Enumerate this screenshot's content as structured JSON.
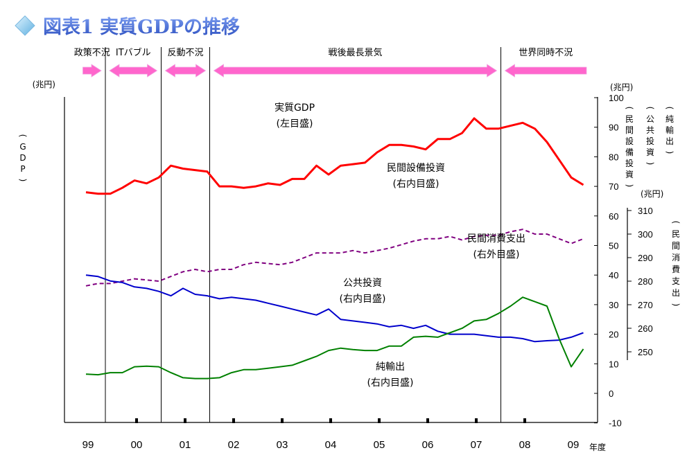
{
  "title": "図表1 実質GDPの推移",
  "colors": {
    "gdp": "#000000",
    "equipment": "#ff0000",
    "consumption": "#800080",
    "public": "#0000cc",
    "netexport": "#008000",
    "title": "#3a5fcd",
    "arrow": "#ff66cc"
  },
  "periods": [
    {
      "label": "政策不況",
      "x_from": 1998.85,
      "x_to": 1999.4
    },
    {
      "label": "ITバブル",
      "x_from": 1999.4,
      "x_to": 2000.55
    },
    {
      "label": "反動不況",
      "x_from": 2000.55,
      "x_to": 2001.55
    },
    {
      "label": "戦後最長景気",
      "x_from": 2001.55,
      "x_to": 2007.55
    },
    {
      "label": "世界同時不況",
      "x_from": 2007.55,
      "x_to": 2009.4
    }
  ],
  "chart_data": {
    "type": "line",
    "xlabel": "年度",
    "x_ticks": [
      "99",
      "00",
      "01",
      "02",
      "03",
      "04",
      "05",
      "06",
      "07",
      "08",
      "09"
    ],
    "vlines_x": [
      1999.4,
      2000.55,
      2001.55,
      2007.55
    ],
    "x": [
      1999.0,
      1999.25,
      1999.5,
      1999.75,
      2000.0,
      2000.25,
      2000.5,
      2000.75,
      2001.0,
      2001.25,
      2001.5,
      2001.75,
      2002.0,
      2002.25,
      2002.5,
      2002.75,
      2003.0,
      2003.25,
      2003.5,
      2003.75,
      2004.0,
      2004.25,
      2004.5,
      2004.75,
      2005.0,
      2005.25,
      2005.5,
      2005.75,
      2006.0,
      2006.25,
      2006.5,
      2006.75,
      2007.0,
      2007.25,
      2007.5,
      2007.75,
      2008.0,
      2008.25,
      2008.5,
      2008.75,
      2009.0,
      2009.25
    ],
    "axes": {
      "left": {
        "label": "(GDP)",
        "unit": "(兆円)",
        "min": 460,
        "max": 560,
        "ticks": [
          460,
          480,
          500,
          520,
          540,
          560
        ]
      },
      "right_inner": {
        "label": "(民間設備投資)(公共投資)(純輸出)",
        "unit": "(兆円)",
        "min": -10,
        "max": 100,
        "ticks": [
          -10,
          0,
          10,
          20,
          30,
          40,
          50,
          60,
          70,
          80,
          90,
          100
        ]
      },
      "right_outer": {
        "label": "(民間消費支出)",
        "unit": "(兆円)",
        "min": 250,
        "max": 310,
        "ticks": [
          250,
          260,
          270,
          280,
          290,
          300,
          310
        ]
      }
    },
    "series": [
      {
        "name": "実質GDP",
        "sub": "(左目盛)",
        "axis": "left",
        "color_key": "gdp",
        "values": [
          487,
          490,
          489,
          492,
          502,
          503,
          503,
          508,
          511,
          508,
          502,
          499,
          500,
          504,
          508,
          509,
          507,
          510,
          514,
          520,
          528,
          527,
          529,
          528,
          533,
          538,
          541,
          543,
          544,
          548,
          549,
          553,
          561,
          560,
          559,
          564,
          570,
          564,
          559,
          540,
          523,
          528
        ]
      },
      {
        "name": "民間設備投資",
        "sub": "(右内目盛)",
        "axis": "right_inner",
        "color_key": "equipment",
        "values": [
          68,
          67.5,
          67.5,
          69.5,
          72,
          71,
          73,
          77,
          76,
          75.5,
          75,
          70,
          70,
          69.5,
          70,
          71,
          70.5,
          72.5,
          72.5,
          77,
          74,
          77,
          77.5,
          78,
          81.5,
          84,
          84,
          83.5,
          82.5,
          86,
          86,
          88,
          93,
          89.5,
          89.5,
          90.5,
          91.5,
          89.5,
          85,
          79,
          73,
          70.5
        ]
      },
      {
        "name": "民間消費支出",
        "sub": "(右外目盛)",
        "axis": "right_outer",
        "color_key": "consumption",
        "values": [
          278,
          279,
          279,
          280,
          281,
          280.5,
          280,
          282,
          284,
          285,
          284,
          285,
          285,
          287,
          288,
          287.5,
          287,
          288,
          290,
          292,
          292,
          292,
          293,
          292,
          293,
          294,
          295.5,
          297,
          298,
          298,
          299,
          297.5,
          299,
          299.5,
          299.5,
          301,
          302,
          300,
          300,
          298,
          296,
          298
        ]
      },
      {
        "name": "公共投資",
        "sub": "(右内目盛)",
        "axis": "right_inner",
        "color_key": "public",
        "values": [
          40,
          39.5,
          38,
          37.5,
          36,
          35.5,
          34.5,
          33,
          35.5,
          33.5,
          33,
          32,
          32.5,
          32,
          31.5,
          30.5,
          29.5,
          28.5,
          27.5,
          26.5,
          28.5,
          25,
          24.5,
          24,
          23.5,
          22.5,
          23,
          22,
          23,
          21,
          20,
          20,
          20,
          19.5,
          19,
          19,
          18.5,
          17.5,
          17.8,
          18,
          19,
          20.5
        ]
      },
      {
        "name": "純輸出",
        "sub": "(右内目盛)",
        "axis": "right_inner",
        "color_key": "netexport",
        "values": [
          6.5,
          6.3,
          7,
          7,
          9,
          9.2,
          9,
          7,
          5.3,
          5,
          5,
          5.3,
          7,
          8,
          8,
          8.5,
          9,
          9.5,
          11,
          12.5,
          14.5,
          15.3,
          14.8,
          14.5,
          14.5,
          16,
          16,
          19,
          19.3,
          19,
          20.5,
          22,
          24.5,
          25,
          27,
          29.5,
          32.5,
          31,
          29.5,
          18.5,
          9,
          15
        ]
      }
    ]
  }
}
